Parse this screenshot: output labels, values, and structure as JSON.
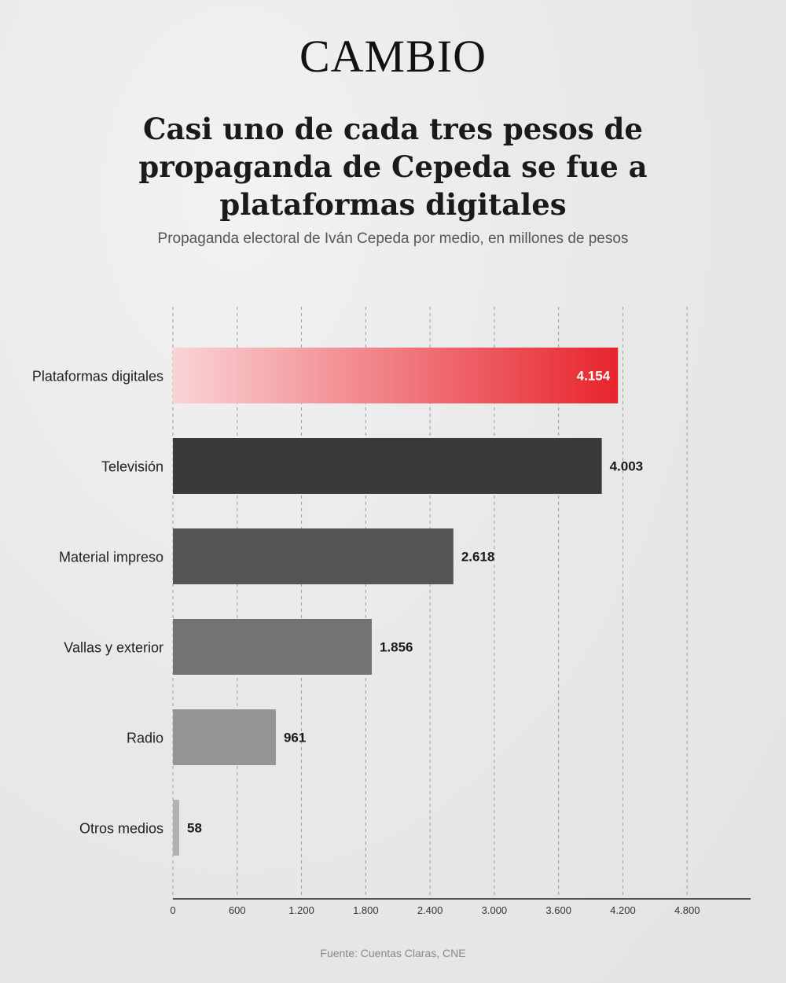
{
  "brand": "CAMBIO",
  "title": "Casi uno de cada tres pesos de propaganda de Cepeda se fue a plataformas digitales",
  "subtitle": "Propaganda electoral de Iván Cepeda por medio, en millones de pesos",
  "source": "Fuente: Cuentas Claras, CNE",
  "colors": {
    "highlight_start": "#f9d4d6",
    "highlight_end": "#e8242c",
    "bars": [
      "#3a3a3a",
      "#555555",
      "#737373",
      "#959595",
      "#b2b2b2"
    ]
  },
  "chart_data": {
    "type": "bar",
    "orientation": "horizontal",
    "categories": [
      "Plataformas digitales",
      "Televisión",
      "Material impreso",
      "Vallas y exterior",
      "Radio",
      "Otros medios"
    ],
    "values": [
      4154,
      4003,
      2618,
      1856,
      961,
      58
    ],
    "value_labels": [
      "4.154",
      "4.003",
      "2.618",
      "1.856",
      "961",
      "58"
    ],
    "xlim": [
      0,
      5400
    ],
    "xticks": [
      0,
      600,
      1200,
      1800,
      2400,
      3000,
      3600,
      4200,
      4800
    ],
    "xtick_labels": [
      "0",
      "600",
      "1.200",
      "1.800",
      "2.400",
      "3.000",
      "3.600",
      "4.200",
      "4.800"
    ],
    "grid": "vertical dashed",
    "highlight_index": 0
  }
}
